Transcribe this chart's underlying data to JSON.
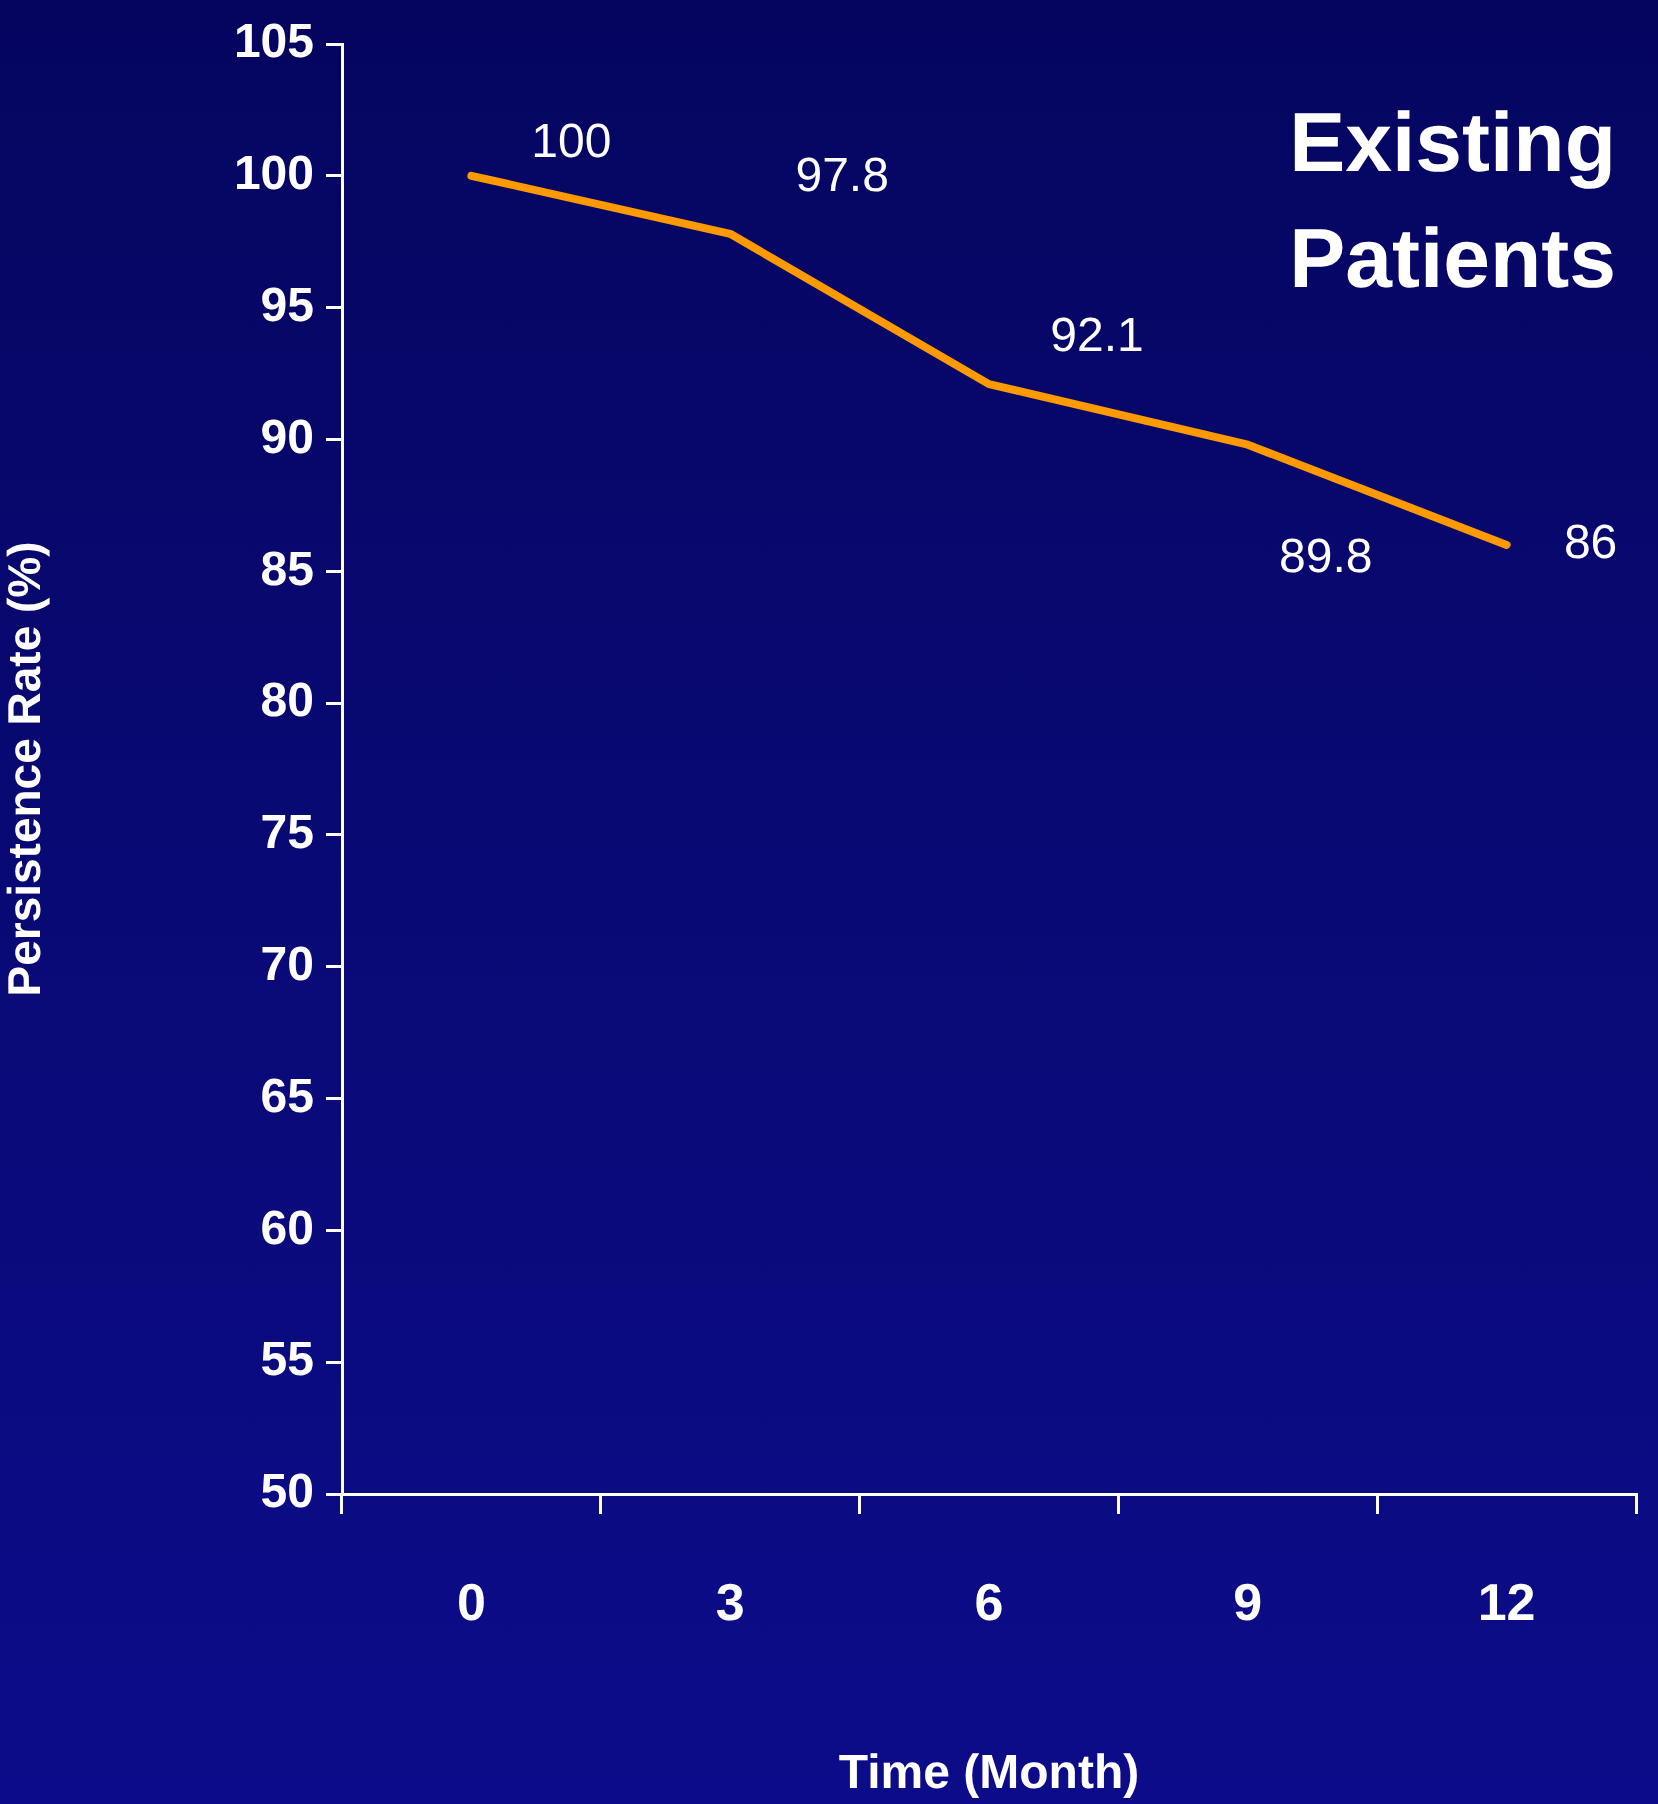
{
  "chart_data": {
    "type": "line",
    "title": "Existing Patients",
    "xlabel": "Time (Month)",
    "ylabel": "Persistence Rate (%)",
    "categories": [
      "0",
      "3",
      "6",
      "9",
      "12"
    ],
    "series": [
      {
        "color": "#ff9900",
        "values": [
          100,
          97.8,
          92.1,
          89.8,
          86
        ]
      }
    ],
    "ylim": [
      50,
      105
    ],
    "yticks": [
      50,
      55,
      60,
      65,
      70,
      75,
      80,
      85,
      90,
      95,
      100,
      105
    ],
    "data_labels": true,
    "grid": false,
    "legend": false,
    "marker": "none",
    "line_style": "solid"
  }
}
